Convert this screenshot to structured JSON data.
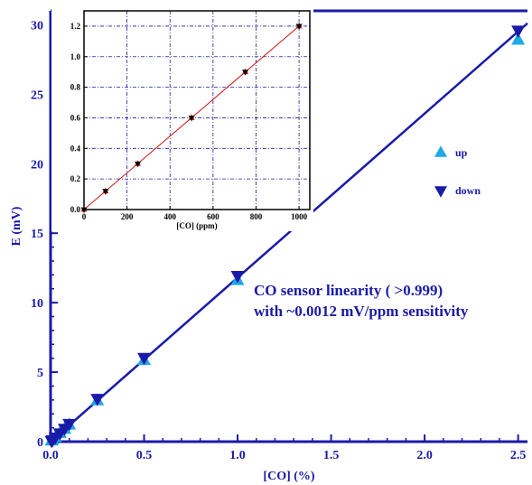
{
  "chart_data": [
    {
      "type": "scatter",
      "xlabel": "[CO] (%)",
      "ylabel": "E (mV)",
      "xlim": [
        0,
        2.55
      ],
      "ylim": [
        0,
        31
      ],
      "x_ticks": [
        "0.0",
        "0.5",
        "1.0",
        "1.5",
        "2.0",
        "2.5"
      ],
      "y_ticks": [
        "0",
        "5",
        "10",
        "15",
        "20",
        "25",
        "30"
      ],
      "grid": false,
      "legend": "right",
      "fit_line": {
        "x": [
          0,
          2.55
        ],
        "y": [
          0,
          30.1
        ]
      },
      "series": [
        {
          "name": "up",
          "marker": "triangle-up",
          "color": "#1ea8e6",
          "x": [
            0.005,
            0.01,
            0.025,
            0.05,
            0.075,
            0.1,
            0.25,
            0.5,
            1.0,
            2.5
          ],
          "y": [
            0.06,
            0.12,
            0.3,
            0.6,
            0.9,
            1.2,
            2.95,
            5.85,
            11.6,
            28.9
          ]
        },
        {
          "name": "down",
          "marker": "triangle-down",
          "color": "#1a1aa8",
          "x": [
            0.005,
            0.01,
            0.025,
            0.05,
            0.075,
            0.1,
            0.25,
            0.5,
            1.0,
            2.5
          ],
          "y": [
            0.07,
            0.13,
            0.32,
            0.62,
            0.95,
            1.3,
            3.1,
            6.05,
            11.95,
            29.6
          ]
        }
      ],
      "annotation": [
        "CO sensor linearity ( >0.999)",
        "with ~0.0012 mV/ppm sensitivity"
      ],
      "colors": {
        "axis": "#1a1aa8",
        "fit": "#1a1aa8"
      }
    },
    {
      "type": "scatter",
      "xlabel": "[CO] (ppm)",
      "ylabel": "",
      "xlim": [
        0,
        1050
      ],
      "ylim": [
        0,
        1.3
      ],
      "x_ticks": [
        "0",
        "200",
        "400",
        "600",
        "800",
        "1000"
      ],
      "y_ticks": [
        "0.0",
        "0.2",
        "0.4",
        "0.6",
        "0.8",
        "1.0",
        "1.2"
      ],
      "grid": true,
      "fit_line": {
        "x": [
          0,
          1000
        ],
        "y": [
          0.0,
          1.2
        ]
      },
      "series": [
        {
          "marker": "triangle-up",
          "color": "#cc1111",
          "x": [
            0,
            100,
            250,
            500,
            750,
            1000
          ],
          "y": [
            0.0,
            0.12,
            0.3,
            0.6,
            0.9,
            1.2
          ]
        },
        {
          "marker": "triangle-down",
          "color": "#000000",
          "x": [
            0,
            100,
            250,
            500,
            750,
            1000
          ],
          "y": [
            0.0,
            0.12,
            0.3,
            0.6,
            0.9,
            1.2
          ]
        }
      ],
      "colors": {
        "axis": "#000000",
        "grid": "#1a1aa8",
        "fit": "#cc1111"
      }
    }
  ]
}
